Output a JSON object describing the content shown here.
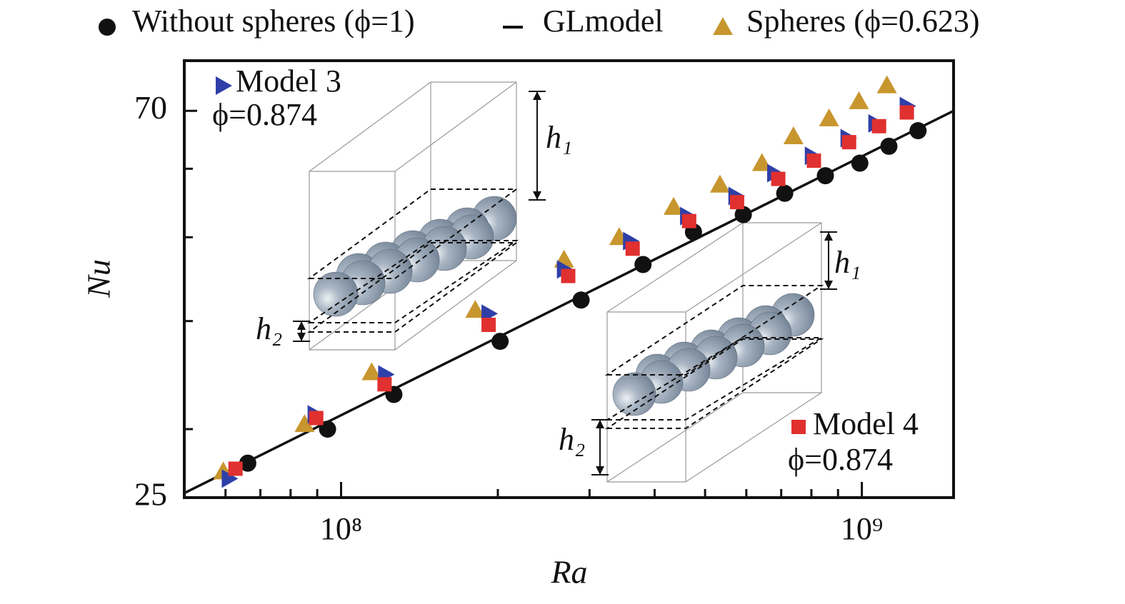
{
  "chart_data": {
    "type": "scatter",
    "xlabel": "Ra",
    "ylabel": "Nu",
    "xscale": "log",
    "yscale": "log",
    "xlim": [
      50000000,
      1500000000
    ],
    "ylim": [
      25,
      80
    ],
    "xticks": [
      {
        "value": 100000000,
        "label": "10⁸"
      },
      {
        "value": 1000000000,
        "label": "10⁹"
      }
    ],
    "xminor_ticks": [
      60000000,
      70000000,
      80000000,
      90000000,
      200000000,
      300000000,
      400000000,
      500000000,
      600000000,
      700000000,
      800000000,
      900000000
    ],
    "yticks": [
      25,
      70
    ],
    "yminor_ticks": [
      30,
      40,
      50,
      60
    ],
    "annotations": [
      "h₁",
      "h₂",
      "h₁",
      "h₂"
    ],
    "series": [
      {
        "name": "Without spheres (ϕ=1)",
        "type": "scatter",
        "marker": "circle",
        "color": "#111111",
        "x": [
          66200000,
          94200000,
          126300000,
          202000000,
          289000000,
          380000000,
          475000000,
          592000000,
          711000000,
          851000000,
          991000000,
          1127000000,
          1282000000
        ],
        "values": [
          27.4,
          30.0,
          32.9,
          37.9,
          42.3,
          46.5,
          50.7,
          53.1,
          56.2,
          58.9,
          60.9,
          63.7,
          66.4
        ]
      },
      {
        "name": "GLmodel",
        "type": "line",
        "color": "#111111",
        "x": [
          50000000,
          1500000000
        ],
        "values": [
          25.3,
          70.0
        ]
      },
      {
        "name": "Spheres (ϕ=0.623)",
        "type": "scatter",
        "marker": "triangle",
        "color": "#c8962e",
        "x": [
          59400000,
          85100000,
          114500000,
          181000000,
          268000000,
          342000000,
          435000000,
          534000000,
          643000000,
          739000000,
          865000000,
          987000000,
          1117000000
        ],
        "values": [
          26.8,
          30.4,
          34.9,
          41.2,
          47.1,
          50.0,
          54.2,
          57.5,
          60.9,
          65.4,
          68.6,
          71.8,
          74.9
        ]
      },
      {
        "name": "Model 3",
        "note": "ϕ=0.874",
        "type": "scatter",
        "marker": "right-triangle",
        "color": "#2f3fa8",
        "x": [
          60900000,
          89000000,
          121600000,
          192000000,
          268000000,
          359000000,
          462000000,
          572000000,
          679000000,
          802000000,
          939000000,
          1062000000,
          1220000000
        ],
        "values": [
          26.3,
          31.2,
          34.7,
          40.8,
          45.9,
          49.5,
          52.9,
          55.8,
          59.3,
          62.1,
          65.1,
          67.7,
          70.9
        ]
      },
      {
        "name": "Model 4",
        "note": "ϕ=0.874",
        "type": "scatter",
        "marker": "square",
        "color": "#e0302f",
        "x": [
          62700000,
          89600000,
          121200000,
          192000000,
          273000000,
          363000000,
          466000000,
          576000000,
          691000000,
          809000000,
          945000000,
          1079000000,
          1220000000
        ],
        "values": [
          27.0,
          30.9,
          33.8,
          39.6,
          45.1,
          48.5,
          52.2,
          54.9,
          58.4,
          61.3,
          64.4,
          67.2,
          69.7
        ]
      }
    ]
  }
}
